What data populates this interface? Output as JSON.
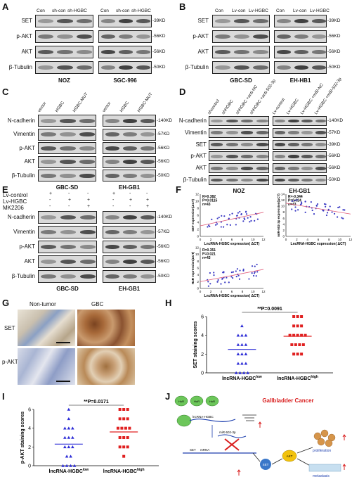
{
  "panelA": {
    "letter": "A",
    "lanes1": [
      "Con",
      "sh-con",
      "sh-HGBC"
    ],
    "lanes2": [
      "Con",
      "sh-con",
      "sh-HGBC"
    ],
    "rows": [
      "SET",
      "p-AKT",
      "AKT",
      "β-Tubulin"
    ],
    "kd": [
      "39KD",
      "56KD",
      "56KD",
      "50KD"
    ],
    "cells": [
      "NOZ",
      "SGC-996"
    ]
  },
  "panelB": {
    "letter": "B",
    "lanes1": [
      "Con",
      "Lv-con",
      "Lv-HGBC"
    ],
    "lanes2": [
      "Con",
      "Lv-con",
      "Lv-HGBC"
    ],
    "rows": [
      "SET",
      "p-AKT",
      "AKT",
      "β-Tubulin"
    ],
    "kd": [
      "39KD",
      "56KD",
      "56KD",
      "50KD"
    ],
    "cells": [
      "GBC-SD",
      "EH-HB1"
    ]
  },
  "panelC": {
    "letter": "C",
    "lanes": [
      "vector",
      "HGBC",
      "HGBC-MUT",
      "vector",
      "HGBC",
      "HGBC-MUT"
    ],
    "rows": [
      "N-cadherin",
      "Vimentin",
      "p-AKT",
      "AKT",
      "β-Tubulin"
    ],
    "kd": [
      "140KD",
      "57KD",
      "56KD",
      "56KD",
      "50KD"
    ],
    "cells": [
      "GBC-SD",
      "EH-GB1"
    ]
  },
  "panelD": {
    "letter": "D",
    "lanes": [
      "shcontrol",
      "shHGBC",
      "shHGBC +anti-NC",
      "shHGBC +anti-502-3p",
      "Lv-control",
      "Lv-HGBC",
      "Lv-HGBC +miR-NC",
      "Lv-HGBC +miR-502-3p"
    ],
    "rows": [
      "N-cadherin",
      "Vimentin",
      "SET",
      "p-AKT",
      "AKT",
      "β-Tubulin"
    ],
    "kd": [
      "140KD",
      "57KD",
      "39KD",
      "56KD",
      "56KD",
      "50KD"
    ],
    "cells": [
      "NOZ",
      "EH-GB1"
    ]
  },
  "panelE": {
    "letter": "E",
    "conds": [
      "Lv-control",
      "Lv-HGBC",
      "MK2206"
    ],
    "signs1": [
      [
        "+",
        "-",
        "-"
      ],
      [
        "-",
        "+",
        "+"
      ],
      [
        "-",
        "-",
        "+"
      ]
    ],
    "signs2": [
      [
        "+",
        "-",
        "-"
      ],
      [
        "-",
        "+",
        "+"
      ],
      [
        "-",
        "-",
        "+"
      ]
    ],
    "rows": [
      "N-cadherin",
      "Vimentin",
      "p-AKT",
      "AKT",
      "β-Tubulin"
    ],
    "kd": [
      "140KD",
      "57KD",
      "56KD",
      "56KD",
      "50KD"
    ],
    "cells": [
      "GBC-SD",
      "EH-GB1"
    ]
  },
  "panelF": {
    "letter": "F",
    "plot1": {
      "ylabel": "SET expression(ΔCT)",
      "xlabel": "LncRNA-HGBC expression( ΔCT)",
      "stats": [
        "R=0.382",
        "P=0.0115",
        "n=43"
      ],
      "xticks": [
        "0",
        "2",
        "4",
        "6",
        "8",
        "10",
        "12"
      ],
      "yticks": [
        "0",
        "2",
        "4",
        "6",
        "8",
        "10",
        "12"
      ]
    },
    "plot2": {
      "ylabel": "miR-502-3p expression(ΔCT)",
      "xlabel": "LncRNA-HGBC expression( ΔCT)",
      "stats": [
        "R=-0.344",
        "P=0.024",
        "n=43"
      ],
      "xticks": [
        "0",
        "2",
        "4",
        "6",
        "8",
        "10",
        "12"
      ],
      "yticks": [
        "0",
        "2",
        "4",
        "6",
        "8",
        "10",
        "12",
        "14"
      ]
    },
    "plot3": {
      "ylabel": "HuR expression(ΔCT)",
      "xlabel": "LncRNA-HGBC expression( ΔCT)",
      "stats": [
        "R=0.351",
        "P=0.021",
        "n=43"
      ],
      "xticks": [
        "0",
        "2",
        "4",
        "6",
        "8",
        "10",
        "12"
      ],
      "yticks": [
        "0",
        "2",
        "4",
        "6",
        "8",
        "10",
        "12"
      ]
    }
  },
  "panelG": {
    "letter": "G",
    "cols": [
      "Non-tumor",
      "GBC"
    ],
    "rows": [
      "SET",
      "p-AKT"
    ]
  },
  "panelH": {
    "letter": "H",
    "pval": "**P=0.0091",
    "ylabel": "SET staining scores",
    "groups": [
      "lncRNA-HGBClow",
      "lncRNA-HGBChigh"
    ],
    "glabels": [
      [
        "lncRNA-HGBC",
        "low"
      ],
      [
        "lncRNA-HGBC",
        "high"
      ]
    ],
    "yticks": [
      "0",
      "2",
      "4",
      "6"
    ]
  },
  "panelI": {
    "letter": "I",
    "pval": "**P=0.0171",
    "ylabel": "p-AKT staining scores",
    "glabels": [
      [
        "lncRNA-HGBC",
        "low"
      ],
      [
        "lncRNA-HGBC",
        "high"
      ]
    ],
    "yticks": [
      "0",
      "2",
      "4",
      "6"
    ]
  },
  "panelJ": {
    "letter": "J",
    "title": "Gallbladder Cancer",
    "labels": [
      "HuR",
      "HuR",
      "HuR",
      "lncRNA-HGBC",
      "miR-502-3p",
      "SET",
      "mRNA",
      "SET",
      "AKT",
      "proliferation",
      "metastasis"
    ]
  },
  "colors": {
    "low": "#2b2bd6",
    "high": "#e02020",
    "fitline": "#e05c7a"
  }
}
